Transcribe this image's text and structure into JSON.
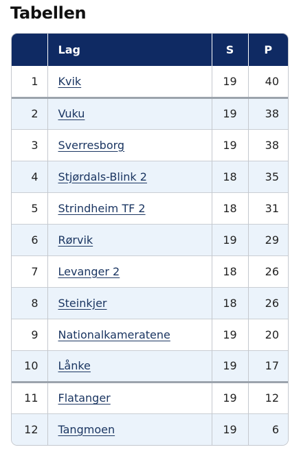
{
  "title": "Tabellen",
  "headers": {
    "team": "Lag",
    "s": "S",
    "p": "P"
  },
  "rows": [
    {
      "rank": "1",
      "team": "Kvik",
      "s": "19",
      "p": "40"
    },
    {
      "rank": "2",
      "team": "Vuku",
      "s": "19",
      "p": "38"
    },
    {
      "rank": "3",
      "team": "Sverresborg",
      "s": "19",
      "p": "38"
    },
    {
      "rank": "4",
      "team": "Stjørdals-Blink 2",
      "s": "18",
      "p": "35"
    },
    {
      "rank": "5",
      "team": "Strindheim TF 2",
      "s": "18",
      "p": "31"
    },
    {
      "rank": "6",
      "team": "Rørvik",
      "s": "19",
      "p": "29"
    },
    {
      "rank": "7",
      "team": "Levanger 2",
      "s": "18",
      "p": "26"
    },
    {
      "rank": "8",
      "team": "Steinkjer",
      "s": "18",
      "p": "26"
    },
    {
      "rank": "9",
      "team": "Nationalkameratene",
      "s": "19",
      "p": "20"
    },
    {
      "rank": "10",
      "team": "Lånke",
      "s": "19",
      "p": "17"
    },
    {
      "rank": "11",
      "team": "Flatanger",
      "s": "19",
      "p": "12"
    },
    {
      "rank": "12",
      "team": "Tangmoen",
      "s": "19",
      "p": "6"
    }
  ],
  "colors": {
    "header_bg": "#0f2a63",
    "header_text": "#ffffff",
    "row_alt_bg": "#ebf3fb",
    "link": "#1a3561",
    "separator": "#9ba3ac"
  }
}
